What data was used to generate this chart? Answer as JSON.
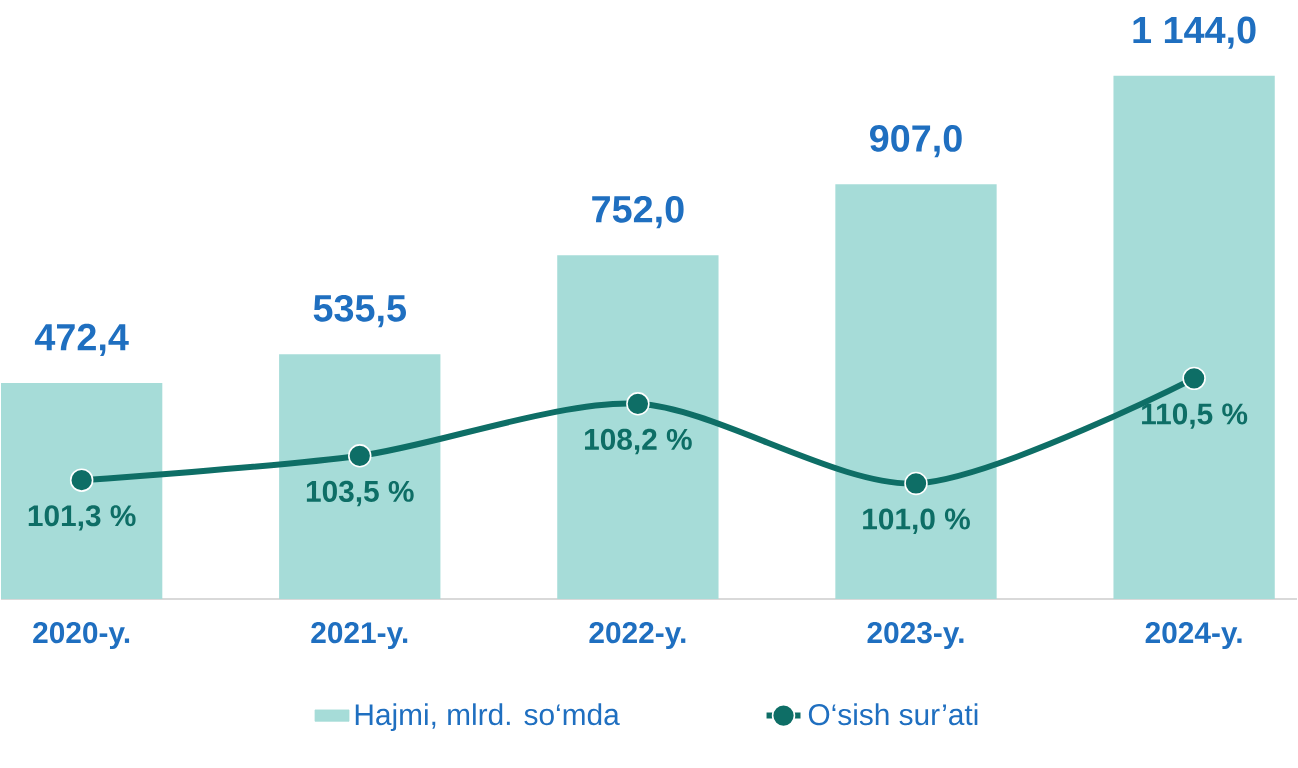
{
  "chart_data": {
    "type": "bar",
    "categories": [
      "2020-y.",
      "2021-y.",
      "2022-y.",
      "2023-y.",
      "2024-y."
    ],
    "series": [
      {
        "name": "Hajmi, mlrd. so‘mda",
        "color": "#a6dcd8",
        "values": [
          472.4,
          535.5,
          752.0,
          907.0,
          1144.0
        ],
        "value_labels": [
          "472,4",
          "535,5",
          "752,0",
          "907,0",
          "1 144,0"
        ]
      },
      {
        "name": "O‘sish sur’ati",
        "type": "line",
        "axis": "y2",
        "color": "#0e6e66",
        "values": [
          101.3,
          103.5,
          108.2,
          101.0,
          110.5
        ],
        "value_labels": [
          "101,3 %",
          "103,5 %",
          "108,2 %",
          "101,0 %",
          "110,5 %"
        ]
      }
    ],
    "tick_labels": "x",
    "legend": "bottom",
    "marker": "circle",
    "line_style": "solid"
  }
}
